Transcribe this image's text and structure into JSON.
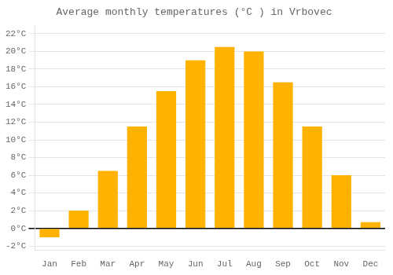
{
  "chart_data": {
    "type": "bar",
    "title": "Average monthly temperatures (°C ) in Vrbovec",
    "categories": [
      "Jan",
      "Feb",
      "Mar",
      "Apr",
      "May",
      "Jun",
      "Jul",
      "Aug",
      "Sep",
      "Oct",
      "Nov",
      "Dec"
    ],
    "values": [
      -1.0,
      2.0,
      6.5,
      11.5,
      15.5,
      19.0,
      20.5,
      20.0,
      16.5,
      11.5,
      6.0,
      0.7
    ],
    "color": "#FFB300",
    "ylim": [
      -2.5,
      23
    ],
    "yticks": [
      {
        "value": -2,
        "label": "-2°C"
      },
      {
        "value": 0,
        "label": "0°C"
      },
      {
        "value": 2,
        "label": "2°C"
      },
      {
        "value": 4,
        "label": "4°C"
      },
      {
        "value": 6,
        "label": "6°C"
      },
      {
        "value": 8,
        "label": "8°C"
      },
      {
        "value": 10,
        "label": "10°C"
      },
      {
        "value": 12,
        "label": "12°C"
      },
      {
        "value": 14,
        "label": "14°C"
      },
      {
        "value": 16,
        "label": "16°C"
      },
      {
        "value": 18,
        "label": "18°C"
      },
      {
        "value": 20,
        "label": "20°C"
      },
      {
        "value": 22,
        "label": "22°C"
      }
    ],
    "grid": true
  }
}
